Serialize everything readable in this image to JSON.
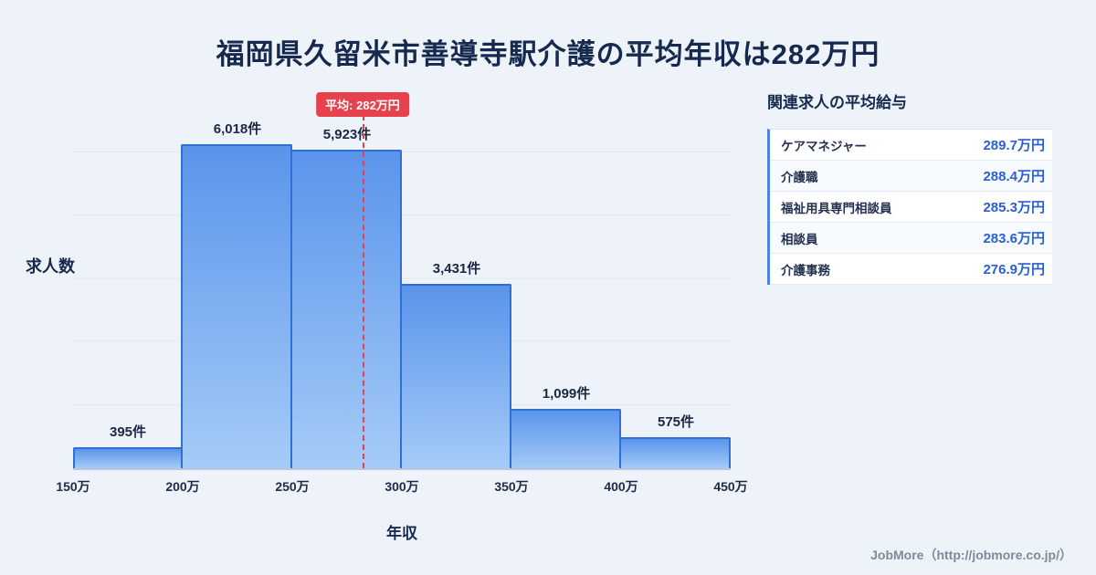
{
  "page": {
    "title": "福岡県久留米市善導寺駅介護の平均年収は282万円",
    "footer": "JobMore（http://jobmore.co.jp/）"
  },
  "chart_data": {
    "type": "bar",
    "title": "福岡県久留米市善導寺駅介護の平均年収は282万円",
    "categories": [
      "150万-200万",
      "200万-250万",
      "250万-300万",
      "300万-350万",
      "350万-400万",
      "400万-450万"
    ],
    "values": [
      395,
      6018,
      5923,
      3431,
      1099,
      575
    ],
    "bar_labels": [
      "395件",
      "6,018件",
      "5,923件",
      "3,431件",
      "1,099件",
      "575件"
    ],
    "x_ticks": [
      "150万",
      "200万",
      "250万",
      "300万",
      "350万",
      "400万",
      "450万"
    ],
    "x_range": [
      150,
      450
    ],
    "xlabel": "年収",
    "ylabel": "求人数",
    "ylim": [
      0,
      7000
    ],
    "grid": true,
    "legend": false,
    "average_line": {
      "x_value": 282,
      "label": "平均: 282万円"
    }
  },
  "side_panel": {
    "heading": "関連求人の平均給与",
    "rows": [
      {
        "label": "ケアマネジャー",
        "value": "289.7万円"
      },
      {
        "label": "介護職",
        "value": "288.4万円"
      },
      {
        "label": "福祉用具専門相談員",
        "value": "285.3万円"
      },
      {
        "label": "相談員",
        "value": "283.6万円"
      },
      {
        "label": "介護事務",
        "value": "276.9万円"
      }
    ]
  },
  "colors": {
    "background": "#eef3fa",
    "title": "#16294f",
    "bar_top": "#5a94ea",
    "bar_bottom": "#a5cbf8",
    "bar_border": "#2f6fd6",
    "average_line": "#e8414e",
    "value_text": "#2a5fd1",
    "panel_accent": "#4c84e8"
  }
}
